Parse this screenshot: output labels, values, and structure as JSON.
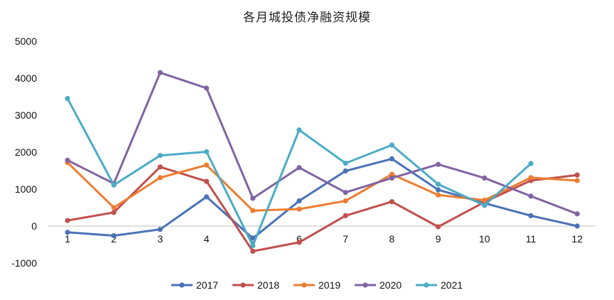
{
  "chart_data": {
    "type": "line",
    "title": "各月城投债净融资规模",
    "xlabel": "",
    "ylabel": "",
    "categories": [
      "1",
      "2",
      "3",
      "4",
      "5",
      "6",
      "7",
      "8",
      "9",
      "10",
      "11",
      "12"
    ],
    "ylim": [
      -1000,
      5000
    ],
    "yticks": [
      "5000",
      "4000",
      "3000",
      "2000",
      "1000",
      "0",
      "-1000"
    ],
    "ytick_values": [
      5000,
      4000,
      3000,
      2000,
      1000,
      0,
      -1000
    ],
    "grid": false,
    "legend_position": "bottom",
    "series": [
      {
        "name": "2017",
        "color": "#4a72b8",
        "values": [
          -170,
          -260,
          -90,
          790,
          -330,
          680,
          1490,
          1820,
          980,
          620,
          280,
          0
        ]
      },
      {
        "name": "2018",
        "color": "#c0504d",
        "values": [
          150,
          370,
          1600,
          1210,
          -680,
          -440,
          280,
          660,
          -20,
          650,
          1230,
          1380
        ]
      },
      {
        "name": "2019",
        "color": "#ed7d31",
        "values": [
          1720,
          500,
          1310,
          1650,
          420,
          460,
          680,
          1400,
          840,
          700,
          1310,
          1230
        ]
      },
      {
        "name": "2020",
        "color": "#8064a2",
        "values": [
          1780,
          1150,
          4150,
          3730,
          750,
          1580,
          910,
          1300,
          1670,
          1300,
          810,
          330
        ]
      },
      {
        "name": "2021",
        "color": "#4bacc6",
        "values": [
          3450,
          1110,
          1910,
          2010,
          -530,
          2600,
          1700,
          2190,
          1130,
          560,
          1690,
          null
        ]
      }
    ]
  }
}
